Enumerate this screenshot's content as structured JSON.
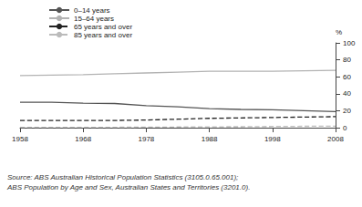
{
  "chart_data": {
    "type": "line",
    "ylabel": "%",
    "x": [
      1958,
      1963,
      1968,
      1973,
      1978,
      1983,
      1988,
      1993,
      1998,
      2003,
      2008
    ],
    "series": [
      {
        "name": "0–14 years",
        "color": "#555555",
        "line_style": "solid",
        "values": [
          30,
          30,
          29,
          28.5,
          26,
          24.5,
          22.5,
          21.5,
          21,
          20,
          19
        ]
      },
      {
        "name": "15–64 years",
        "color": "#b3b3b3",
        "line_style": "solid",
        "values": [
          61.5,
          62,
          62.5,
          63.5,
          64.5,
          65.5,
          66.5,
          66.5,
          66.5,
          67,
          67.5
        ]
      },
      {
        "name": "65 years and over",
        "color": "#222222",
        "line_style": "dashed",
        "values": [
          8.5,
          8.5,
          8.5,
          8.5,
          9,
          10,
          11,
          11.5,
          12,
          12.5,
          13
        ]
      },
      {
        "name": "85 years and over",
        "color": "#bbbbbb",
        "line_style": "dashed",
        "values": [
          0.5,
          0.5,
          0.5,
          0.5,
          0.6,
          0.8,
          1,
          1.1,
          1.4,
          1.6,
          1.8
        ]
      }
    ],
    "xlim": [
      1958,
      2008
    ],
    "xticks": [
      1958,
      1968,
      1978,
      1988,
      1998,
      2008
    ],
    "ylim": [
      0,
      100
    ],
    "yticks": [
      0,
      20,
      40,
      60,
      80,
      100
    ],
    "grid": false,
    "legend": "top-left",
    "annotations": [
      "Source: ABS Australian Historical Population Statistics (3105.0.65.001);",
      "ABS Population by Age and Sex, Australian States and Territories (3201.0)."
    ]
  }
}
